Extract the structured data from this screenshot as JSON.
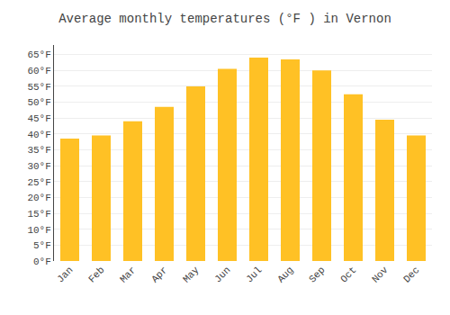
{
  "chart_data": {
    "type": "bar",
    "title": "Average monthly temperatures (°F ) in Vernon",
    "categories": [
      "Jan",
      "Feb",
      "Mar",
      "Apr",
      "May",
      "Jun",
      "Jul",
      "Aug",
      "Sep",
      "Oct",
      "Nov",
      "Dec"
    ],
    "values": [
      38.5,
      39.5,
      44.0,
      48.5,
      55.0,
      60.5,
      64.0,
      63.5,
      60.0,
      52.5,
      44.5,
      39.5
    ],
    "color": "#FFC125",
    "ylim": [
      0,
      68
    ],
    "yticks": [
      {
        "value": 0,
        "label": "0°F"
      },
      {
        "value": 5,
        "label": "5°F"
      },
      {
        "value": 10,
        "label": "10°F"
      },
      {
        "value": 15,
        "label": "15°F"
      },
      {
        "value": 20,
        "label": "20°F"
      },
      {
        "value": 25,
        "label": "25°F"
      },
      {
        "value": 30,
        "label": "30°F"
      },
      {
        "value": 35,
        "label": "35°F"
      },
      {
        "value": 40,
        "label": "40°F"
      },
      {
        "value": 45,
        "label": "45°F"
      },
      {
        "value": 50,
        "label": "50°F"
      },
      {
        "value": 55,
        "label": "55°F"
      },
      {
        "value": 60,
        "label": "60°F"
      },
      {
        "value": 65,
        "label": "65°F"
      }
    ],
    "grid": true
  }
}
